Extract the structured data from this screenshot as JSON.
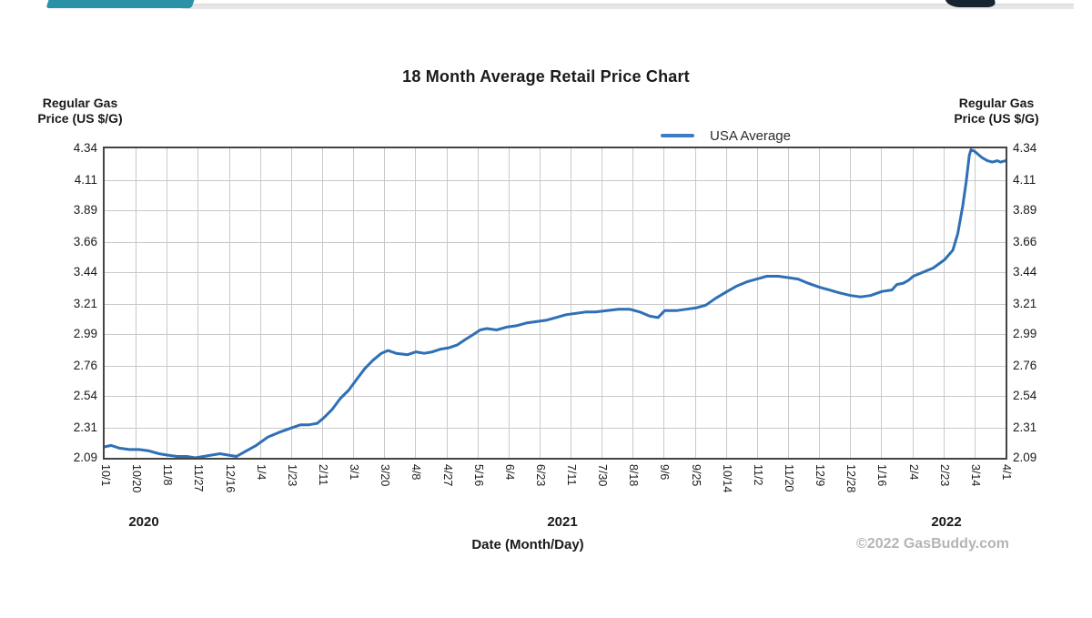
{
  "title": "18 Month Average Retail Price Chart",
  "y_axis_title": [
    "Regular Gas",
    "Price (US $/G)"
  ],
  "legend": {
    "label": "USA Average",
    "line_color": "#3b7cc4"
  },
  "x_axis_title": "Date (Month/Day)",
  "watermark": "©2022 GasBuddy.com",
  "year_labels": [
    "2020",
    "2021",
    "2022"
  ],
  "colors": {
    "line": "#2f6fb5",
    "grid": "#c9c9c9",
    "plot_border": "#444444",
    "teal_bar": "#2a91a7",
    "track": "#e6e6e6",
    "logo_stub": "#17232e",
    "watermark_gray": "#b5b5b5"
  },
  "chart_data": {
    "type": "line",
    "title": "18 Month Average Retail Price Chart",
    "xlabel": "Date (Month/Day)",
    "ylabel": "Regular Gas Price (US $/G)",
    "legend_position": "top-right-above-plot",
    "grid": true,
    "ylim": [
      2.09,
      4.34
    ],
    "y_ticks": [
      4.34,
      4.11,
      3.89,
      3.66,
      3.44,
      3.21,
      2.99,
      2.76,
      2.54,
      2.31,
      2.09
    ],
    "x_tick_labels": [
      "10/1",
      "10/20",
      "11/8",
      "11/27",
      "12/16",
      "1/4",
      "1/23",
      "2/11",
      "3/1",
      "3/20",
      "4/8",
      "4/27",
      "5/16",
      "6/4",
      "6/23",
      "7/11",
      "7/30",
      "8/18",
      "9/6",
      "9/25",
      "10/14",
      "11/2",
      "11/20",
      "12/9",
      "12/28",
      "1/16",
      "2/4",
      "2/23",
      "3/14",
      "4/1"
    ],
    "x_range_dates": [
      "2020-10-01",
      "2022-04-01"
    ],
    "series": [
      {
        "name": "USA Average",
        "color": "#2f6fb5",
        "points": [
          [
            "2020-10-01",
            2.17
          ],
          [
            "2020-10-05",
            2.18
          ],
          [
            "2020-10-10",
            2.16
          ],
          [
            "2020-10-16",
            2.15
          ],
          [
            "2020-10-22",
            2.15
          ],
          [
            "2020-10-28",
            2.14
          ],
          [
            "2020-11-03",
            2.12
          ],
          [
            "2020-11-08",
            2.11
          ],
          [
            "2020-11-14",
            2.1
          ],
          [
            "2020-11-20",
            2.1
          ],
          [
            "2020-11-25",
            2.09
          ],
          [
            "2020-11-30",
            2.1
          ],
          [
            "2020-12-05",
            2.11
          ],
          [
            "2020-12-10",
            2.12
          ],
          [
            "2020-12-15",
            2.11
          ],
          [
            "2020-12-20",
            2.1
          ],
          [
            "2020-12-26",
            2.14
          ],
          [
            "2021-01-01",
            2.18
          ],
          [
            "2021-01-08",
            2.24
          ],
          [
            "2021-01-16",
            2.28
          ],
          [
            "2021-01-23",
            2.31
          ],
          [
            "2021-01-28",
            2.33
          ],
          [
            "2021-02-02",
            2.33
          ],
          [
            "2021-02-07",
            2.34
          ],
          [
            "2021-02-11",
            2.38
          ],
          [
            "2021-02-16",
            2.44
          ],
          [
            "2021-02-21",
            2.52
          ],
          [
            "2021-02-26",
            2.58
          ],
          [
            "2021-03-03",
            2.66
          ],
          [
            "2021-03-08",
            2.74
          ],
          [
            "2021-03-13",
            2.8
          ],
          [
            "2021-03-18",
            2.85
          ],
          [
            "2021-03-22",
            2.87
          ],
          [
            "2021-03-27",
            2.85
          ],
          [
            "2021-04-03",
            2.84
          ],
          [
            "2021-04-08",
            2.86
          ],
          [
            "2021-04-13",
            2.85
          ],
          [
            "2021-04-18",
            2.86
          ],
          [
            "2021-04-23",
            2.88
          ],
          [
            "2021-04-28",
            2.89
          ],
          [
            "2021-05-03",
            2.91
          ],
          [
            "2021-05-08",
            2.95
          ],
          [
            "2021-05-12",
            2.98
          ],
          [
            "2021-05-17",
            3.02
          ],
          [
            "2021-05-21",
            3.03
          ],
          [
            "2021-05-27",
            3.02
          ],
          [
            "2021-06-02",
            3.04
          ],
          [
            "2021-06-08",
            3.05
          ],
          [
            "2021-06-14",
            3.07
          ],
          [
            "2021-06-20",
            3.08
          ],
          [
            "2021-06-26",
            3.09
          ],
          [
            "2021-07-02",
            3.11
          ],
          [
            "2021-07-08",
            3.13
          ],
          [
            "2021-07-14",
            3.14
          ],
          [
            "2021-07-20",
            3.15
          ],
          [
            "2021-07-26",
            3.15
          ],
          [
            "2021-08-02",
            3.16
          ],
          [
            "2021-08-09",
            3.17
          ],
          [
            "2021-08-16",
            3.17
          ],
          [
            "2021-08-22",
            3.15
          ],
          [
            "2021-08-28",
            3.12
          ],
          [
            "2021-09-02",
            3.11
          ],
          [
            "2021-09-06",
            3.16
          ],
          [
            "2021-09-13",
            3.16
          ],
          [
            "2021-09-19",
            3.17
          ],
          [
            "2021-09-25",
            3.18
          ],
          [
            "2021-10-01",
            3.2
          ],
          [
            "2021-10-07",
            3.25
          ],
          [
            "2021-10-14",
            3.3
          ],
          [
            "2021-10-20",
            3.34
          ],
          [
            "2021-10-26",
            3.37
          ],
          [
            "2021-11-01",
            3.39
          ],
          [
            "2021-11-07",
            3.41
          ],
          [
            "2021-11-14",
            3.41
          ],
          [
            "2021-11-20",
            3.4
          ],
          [
            "2021-11-26",
            3.39
          ],
          [
            "2021-12-02",
            3.36
          ],
          [
            "2021-12-09",
            3.33
          ],
          [
            "2021-12-15",
            3.31
          ],
          [
            "2021-12-21",
            3.29
          ],
          [
            "2021-12-28",
            3.27
          ],
          [
            "2022-01-03",
            3.26
          ],
          [
            "2022-01-09",
            3.27
          ],
          [
            "2022-01-16",
            3.3
          ],
          [
            "2022-01-22",
            3.31
          ],
          [
            "2022-01-25",
            3.35
          ],
          [
            "2022-01-29",
            3.36
          ],
          [
            "2022-02-01",
            3.38
          ],
          [
            "2022-02-04",
            3.41
          ],
          [
            "2022-02-10",
            3.44
          ],
          [
            "2022-02-16",
            3.47
          ],
          [
            "2022-02-23",
            3.53
          ],
          [
            "2022-02-28",
            3.6
          ],
          [
            "2022-03-03",
            3.72
          ],
          [
            "2022-03-06",
            3.92
          ],
          [
            "2022-03-08",
            4.09
          ],
          [
            "2022-03-10",
            4.29
          ],
          [
            "2022-03-11",
            4.33
          ],
          [
            "2022-03-13",
            4.32
          ],
          [
            "2022-03-15",
            4.3
          ],
          [
            "2022-03-18",
            4.27
          ],
          [
            "2022-03-21",
            4.25
          ],
          [
            "2022-03-24",
            4.24
          ],
          [
            "2022-03-27",
            4.25
          ],
          [
            "2022-03-29",
            4.24
          ],
          [
            "2022-04-01",
            4.25
          ]
        ]
      }
    ],
    "year_labels": [
      "2020",
      "2021",
      "2022"
    ],
    "watermark": "©2022 GasBuddy.com"
  }
}
